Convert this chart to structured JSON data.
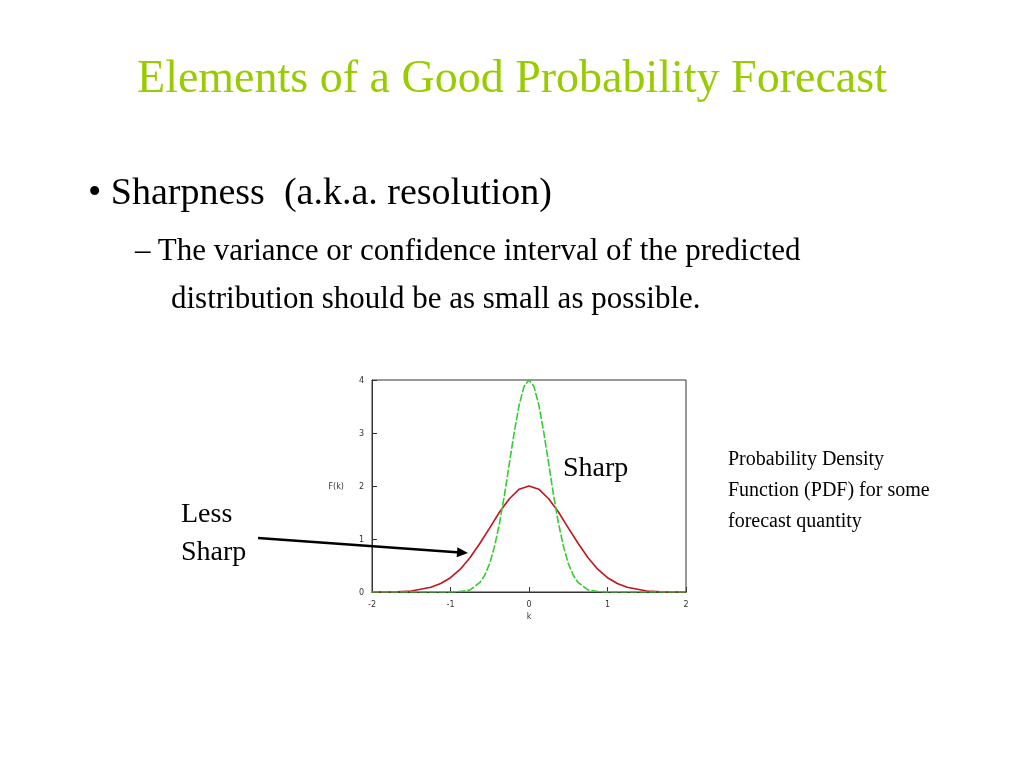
{
  "chart_data": {
    "type": "line",
    "title": "Elements of a Good Probability Forecast",
    "xlabel": "k",
    "ylabel": "F(k)",
    "xlim": [
      -2,
      2
    ],
    "xticks": [
      -2,
      -1,
      0,
      1,
      2
    ],
    "ylim": [
      0,
      4
    ],
    "yticks": [
      0,
      1,
      2,
      3,
      4
    ],
    "grid": false,
    "marker": "none",
    "series": [
      {
        "color": "#c0141e",
        "line_style": "solid",
        "x": [
          -2,
          -1.75,
          -1.5,
          -1.25,
          -1.125,
          -1,
          -0.875,
          -0.75,
          -0.625,
          -0.5,
          -0.375,
          -0.25,
          -0.125,
          0,
          0.125,
          0.25,
          0.375,
          0.5,
          0.625,
          0.75,
          0.875,
          1,
          1.125,
          1.25,
          1.5,
          1.75,
          2
        ],
        "values": [
          0,
          0,
          0.02,
          0.09,
          0.16,
          0.27,
          0.43,
          0.65,
          0.92,
          1.21,
          1.51,
          1.76,
          1.94,
          2,
          1.94,
          1.76,
          1.51,
          1.21,
          0.92,
          0.65,
          0.43,
          0.27,
          0.16,
          0.09,
          0.02,
          0,
          0
        ]
      },
      {
        "color": "#33cc33",
        "line_style": "dashed",
        "x": [
          -2,
          -1,
          -0.875,
          -0.75,
          -0.625,
          -0.5625,
          -0.5,
          -0.4375,
          -0.375,
          -0.3125,
          -0.25,
          -0.1875,
          -0.125,
          -0.0625,
          0,
          0.0625,
          0.125,
          0.1875,
          0.25,
          0.3125,
          0.375,
          0.4375,
          0.5,
          0.5625,
          0.625,
          0.75,
          0.875,
          1,
          2
        ],
        "values": [
          0,
          0,
          0.01,
          0.04,
          0.18,
          0.32,
          0.54,
          0.87,
          1.3,
          1.83,
          2.43,
          3.02,
          3.53,
          3.88,
          4,
          3.88,
          3.53,
          3.02,
          2.43,
          1.83,
          1.3,
          0.87,
          0.54,
          0.32,
          0.18,
          0.04,
          0.01,
          0,
          0
        ]
      }
    ],
    "annotations": [
      "• Sharpness  (a.k.a. resolution)",
      "– The variance or confidence interval of the predicted distribution should be as small as possible.",
      "Probability Density Function (PDF) for some forecast quantity",
      "Sharp",
      "Less Sharp"
    ]
  }
}
